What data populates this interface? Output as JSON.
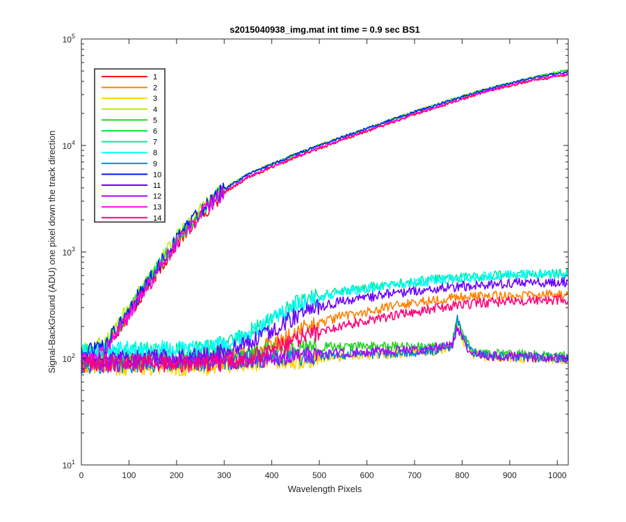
{
  "chart_data": {
    "type": "line",
    "title": "s2015040938_img.mat int time = 0.9 sec   BS1",
    "xlabel": "Wavelength Pixels",
    "ylabel": "Signal-BackGround (ADU) one pixel down the track direction",
    "xlim": [
      0,
      1023
    ],
    "ylim": [
      10,
      100000
    ],
    "yscale": "log",
    "grid": false,
    "legend_position": "top-left",
    "x_ticks": [
      0,
      100,
      200,
      300,
      400,
      500,
      600,
      700,
      800,
      900,
      1000
    ],
    "x_tick_labels": [
      "0",
      "100",
      "200",
      "300",
      "400",
      "500",
      "600",
      "700",
      "800",
      "900",
      "1000"
    ],
    "y_ticks": [
      10,
      100,
      1000,
      10000,
      100000
    ],
    "y_tick_labels": [
      {
        "base": "10",
        "exp": "1"
      },
      {
        "base": "10",
        "exp": "2"
      },
      {
        "base": "10",
        "exp": "3"
      },
      {
        "base": "10",
        "exp": "4"
      },
      {
        "base": "10",
        "exp": "5"
      }
    ],
    "x": [
      0,
      50,
      100,
      150,
      200,
      250,
      300,
      350,
      400,
      450,
      500,
      550,
      600,
      650,
      700,
      750,
      780,
      790,
      800,
      820,
      850,
      900,
      950,
      1000,
      1023
    ],
    "series": [
      {
        "name": "1",
        "color": "#ff0000",
        "values": [
          100,
          125,
          260,
          560,
          1200,
          2200,
          3600,
          5000,
          6200,
          7700,
          9400,
          11300,
          13600,
          16300,
          19500,
          23000,
          25500,
          26300,
          27200,
          29200,
          32000,
          36500,
          41000,
          44500,
          46500
        ]
      },
      {
        "name": "2",
        "color": "#ff7f00",
        "values": [
          88,
          92,
          90,
          92,
          95,
          92,
          98,
          110,
          135,
          175,
          215,
          250,
          275,
          305,
          335,
          360,
          370,
          375,
          375,
          380,
          385,
          390,
          395,
          395,
          400
        ]
      },
      {
        "name": "3",
        "color": "#ffd400",
        "values": [
          82,
          85,
          84,
          84,
          82,
          83,
          86,
          88,
          92,
          96,
          100,
          103,
          108,
          110,
          112,
          118,
          130,
          210,
          150,
          110,
          102,
          102,
          100,
          98,
          100
        ]
      },
      {
        "name": "4",
        "color": "#b4ee00",
        "values": [
          118,
          140,
          300,
          650,
          1350,
          2450,
          3950,
          5400,
          6700,
          8300,
          10100,
          12100,
          14500,
          17400,
          20800,
          24500,
          27000,
          27800,
          28800,
          30800,
          33800,
          38500,
          43500,
          48500,
          51500
        ]
      },
      {
        "name": "5",
        "color": "#24d024",
        "values": [
          92,
          102,
          100,
          102,
          100,
          104,
          110,
          116,
          122,
          126,
          128,
          130,
          130,
          130,
          128,
          132,
          140,
          250,
          170,
          120,
          112,
          110,
          108,
          106,
          108
        ]
      },
      {
        "name": "6",
        "color": "#00ee40",
        "values": [
          108,
          128,
          280,
          610,
          1300,
          2380,
          3900,
          5350,
          6650,
          8250,
          10050,
          12050,
          14450,
          17350,
          20700,
          24400,
          27000,
          27800,
          28800,
          30800,
          33800,
          38500,
          43500,
          48500,
          51500
        ]
      },
      {
        "name": "7",
        "color": "#00e89c",
        "values": [
          112,
          114,
          115,
          118,
          118,
          120,
          135,
          170,
          235,
          320,
          385,
          430,
          465,
          495,
          525,
          555,
          565,
          570,
          575,
          580,
          595,
          610,
          620,
          625,
          625
        ]
      },
      {
        "name": "8",
        "color": "#00ffff",
        "values": [
          115,
          118,
          120,
          122,
          122,
          122,
          130,
          160,
          225,
          310,
          375,
          420,
          455,
          485,
          515,
          545,
          560,
          565,
          570,
          575,
          590,
          605,
          615,
          620,
          620
        ]
      },
      {
        "name": "9",
        "color": "#008cd0",
        "values": [
          86,
          88,
          88,
          90,
          90,
          92,
          94,
          98,
          100,
          104,
          106,
          108,
          110,
          112,
          115,
          120,
          132,
          240,
          160,
          115,
          106,
          104,
          102,
          100,
          102
        ]
      },
      {
        "name": "10",
        "color": "#0019ff",
        "values": [
          112,
          130,
          285,
          620,
          1300,
          2400,
          3900,
          5350,
          6650,
          8250,
          10050,
          12050,
          14450,
          17350,
          20700,
          24400,
          26900,
          27700,
          28700,
          30700,
          33500,
          38000,
          43000,
          47500,
          49500
        ]
      },
      {
        "name": "11",
        "color": "#6a00ff",
        "values": [
          98,
          98,
          100,
          100,
          100,
          104,
          114,
          140,
          185,
          250,
          305,
          345,
          375,
          405,
          430,
          455,
          465,
          470,
          475,
          480,
          495,
          505,
          515,
          520,
          520
        ]
      },
      {
        "name": "12",
        "color": "#ae00ff",
        "values": [
          88,
          90,
          90,
          92,
          94,
          95,
          96,
          98,
          102,
          106,
          110,
          112,
          115,
          118,
          120,
          125,
          140,
          200,
          150,
          112,
          106,
          104,
          102,
          100,
          100
        ]
      },
      {
        "name": "13",
        "color": "#ff00e6",
        "values": [
          96,
          118,
          255,
          560,
          1200,
          2250,
          3700,
          5100,
          6350,
          7850,
          9550,
          11500,
          13800,
          16500,
          19700,
          23200,
          25700,
          26500,
          27500,
          29500,
          32300,
          36800,
          41500,
          45500,
          47500
        ]
      },
      {
        "name": "14",
        "color": "#ff0078",
        "values": [
          90,
          90,
          90,
          90,
          90,
          90,
          92,
          100,
          120,
          150,
          180,
          205,
          225,
          250,
          275,
          300,
          310,
          315,
          320,
          325,
          335,
          345,
          350,
          355,
          355
        ]
      }
    ]
  }
}
